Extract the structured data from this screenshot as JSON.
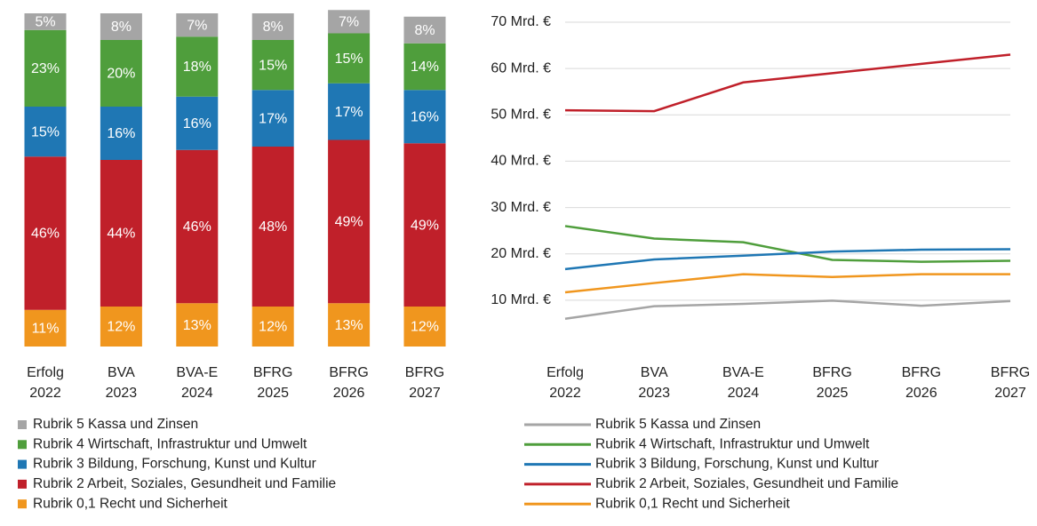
{
  "chart_data": [
    {
      "type": "stacked_bar",
      "categories": [
        [
          "Erfolg",
          "2022"
        ],
        [
          "BVA",
          "2023"
        ],
        [
          "BVA-E",
          "2024"
        ],
        [
          "BFRG",
          "2025"
        ],
        [
          "BFRG",
          "2026"
        ],
        [
          "BFRG",
          "2027"
        ]
      ],
      "series": [
        {
          "name": "Rubrik 5 Kassa und Zinsen",
          "color": "#a5a5a5",
          "values": [
            5,
            8,
            7,
            8,
            7,
            8
          ],
          "value_labels": [
            "5%",
            "8%",
            "7%",
            "8%",
            "7%",
            "8%"
          ]
        },
        {
          "name": "Rubrik 4 Wirtschaft, Infrastruktur und Umwelt",
          "color": "#4f9e3c",
          "values": [
            23,
            20,
            18,
            15,
            15,
            14
          ],
          "value_labels": [
            "23%",
            "20%",
            "18%",
            "15%",
            "15%",
            "14%"
          ]
        },
        {
          "name": "Rubrik 3 Bildung, Forschung, Kunst und Kultur",
          "color": "#1f77b4",
          "values": [
            15,
            16,
            16,
            17,
            17,
            16
          ],
          "value_labels": [
            "15%",
            "16%",
            "16%",
            "17%",
            "17%",
            "16%"
          ]
        },
        {
          "name": "Rubrik 2 Arbeit, Soziales, Gesundheit und Familie",
          "color": "#c0202a",
          "values": [
            46,
            44,
            46,
            48,
            49,
            49
          ],
          "value_labels": [
            "46%",
            "44%",
            "46%",
            "48%",
            "49%",
            "49%"
          ]
        },
        {
          "name": "Rubrik 0,1 Recht und Sicherheit",
          "color": "#f0961e",
          "values": [
            11,
            12,
            13,
            12,
            13,
            12
          ],
          "value_labels": [
            "11%",
            "12%",
            "13%",
            "12%",
            "13%",
            "12%"
          ]
        }
      ]
    },
    {
      "type": "line",
      "categories": [
        [
          "Erfolg",
          "2022"
        ],
        [
          "BVA",
          "2023"
        ],
        [
          "BVA-E",
          "2024"
        ],
        [
          "BFRG",
          "2025"
        ],
        [
          "BFRG",
          "2026"
        ],
        [
          "BFRG",
          "2027"
        ]
      ],
      "ylim": [
        0,
        70
      ],
      "yticks": [
        {
          "value": 10,
          "label": "10 Mrd. €"
        },
        {
          "value": 20,
          "label": "20 Mrd. €"
        },
        {
          "value": 30,
          "label": "30 Mrd. €"
        },
        {
          "value": 40,
          "label": "40 Mrd. €"
        },
        {
          "value": 50,
          "label": "50 Mrd. €"
        },
        {
          "value": 60,
          "label": "60 Mrd. €"
        },
        {
          "value": 70,
          "label": "70 Mrd. €"
        }
      ],
      "grid": true,
      "series": [
        {
          "name": "Rubrik 5 Kassa und Zinsen",
          "color": "#a5a5a5",
          "values": [
            6,
            8.7,
            9.2,
            9.9,
            8.8,
            9.8
          ]
        },
        {
          "name": "Rubrik 4 Wirtschaft, Infrastruktur und Umwelt",
          "color": "#4f9e3c",
          "values": [
            26,
            23.3,
            22.5,
            18.7,
            18.3,
            18.5
          ]
        },
        {
          "name": "Rubrik 3 Bildung, Forschung, Kunst und Kultur",
          "color": "#1f77b4",
          "values": [
            16.7,
            18.8,
            19.6,
            20.5,
            20.9,
            21
          ]
        },
        {
          "name": "Rubrik 2 Arbeit, Soziales, Gesundheit und Familie",
          "color": "#c0202a",
          "values": [
            51,
            50.8,
            57,
            59,
            61,
            63
          ]
        },
        {
          "name": "Rubrik 0,1 Recht und Sicherheit",
          "color": "#f0961e",
          "values": [
            11.7,
            13.7,
            15.6,
            15,
            15.6,
            15.6
          ]
        }
      ]
    }
  ]
}
